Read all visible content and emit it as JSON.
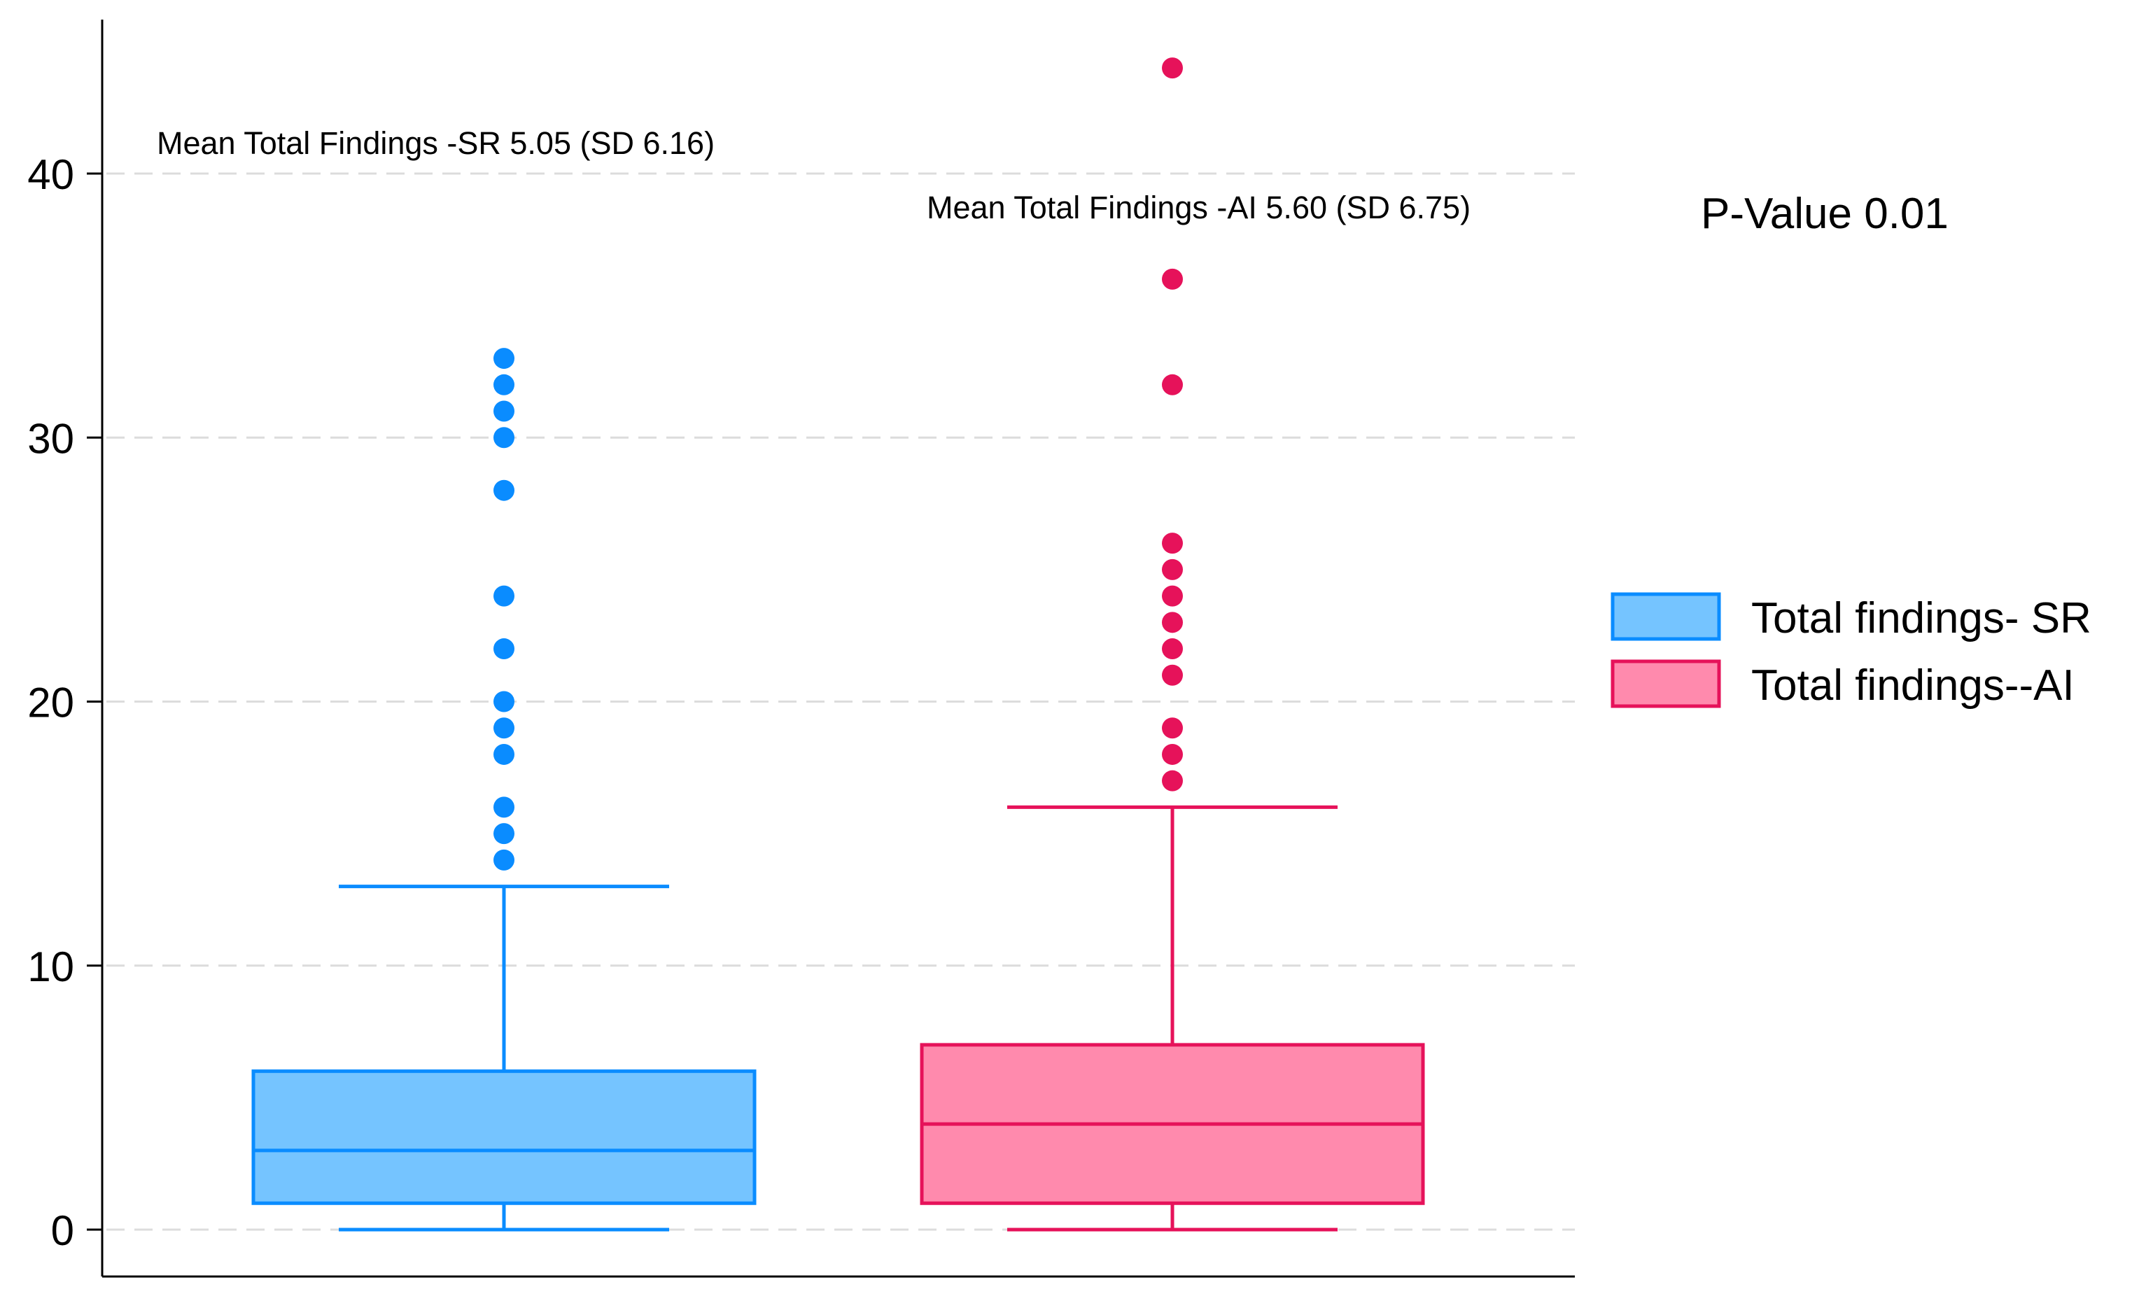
{
  "chart_data": {
    "type": "box",
    "title": "",
    "xlabel": "",
    "ylabel": "",
    "ylim": [
      -1.5,
      46
    ],
    "yticks": [
      0,
      10,
      20,
      30,
      40
    ],
    "grid": true,
    "legend_position": "right",
    "series": [
      {
        "name": "Total findings- SR",
        "color": "#0a8cff",
        "fill": "#75c4ff",
        "whisker_low": 0,
        "q1": 1,
        "median": 3,
        "q3": 6,
        "whisker_high": 13,
        "outliers": [
          14,
          15,
          16,
          18,
          19,
          20,
          22,
          24,
          28,
          30,
          31,
          32,
          33
        ]
      },
      {
        "name": "Total findings--AI",
        "color": "#e6125a",
        "fill": "#ff8aad",
        "whisker_low": 0,
        "q1": 1,
        "median": 4,
        "q3": 7,
        "whisker_high": 16,
        "outliers": [
          17,
          18,
          19,
          21,
          22,
          23,
          24,
          25,
          26,
          32,
          36,
          44
        ]
      }
    ],
    "annotations": [
      "Mean Total Findings -SR 5.05 (SD 6.16)",
      "Mean Total Findings -AI 5.60 (SD 6.75)",
      "P-Value 0.01"
    ]
  }
}
